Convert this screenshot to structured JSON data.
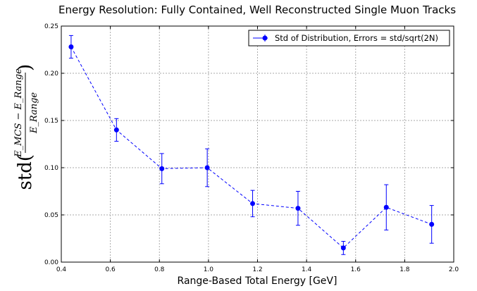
{
  "chart_data": {
    "type": "scatter",
    "title": "Energy Resolution: Fully Contained, Well Reconstructed Single Muon Tracks",
    "xlabel": "Range-Based Total Energy [GeV]",
    "ylabel": {
      "prefix": "std(",
      "numerator": "E_MCS − E_Range",
      "denominator": "E_Range",
      "suffix": ")"
    },
    "xlim": [
      0.4,
      2.0
    ],
    "ylim": [
      0.0,
      0.25
    ],
    "xticks": [
      "0.4",
      "0.6",
      "0.8",
      "1.0",
      "1.2",
      "1.4",
      "1.6",
      "1.8",
      "2.0"
    ],
    "yticks": [
      "0.00",
      "0.05",
      "0.10",
      "0.15",
      "0.20",
      "0.25"
    ],
    "grid": true,
    "legend_position": "top-right",
    "series": [
      {
        "name": "Std of Distribution, Errors = std/sqrt(2N)",
        "color": "#0000ff",
        "line_style": "dashed",
        "marker": "circle",
        "x": [
          0.44,
          0.625,
          0.81,
          0.995,
          1.18,
          1.365,
          1.55,
          1.725,
          1.91
        ],
        "y": [
          0.228,
          0.14,
          0.099,
          0.1,
          0.062,
          0.057,
          0.015,
          0.058,
          0.04
        ],
        "yerr": [
          0.012,
          0.012,
          0.016,
          0.02,
          0.014,
          0.018,
          0.007,
          0.024,
          0.02
        ]
      }
    ]
  }
}
